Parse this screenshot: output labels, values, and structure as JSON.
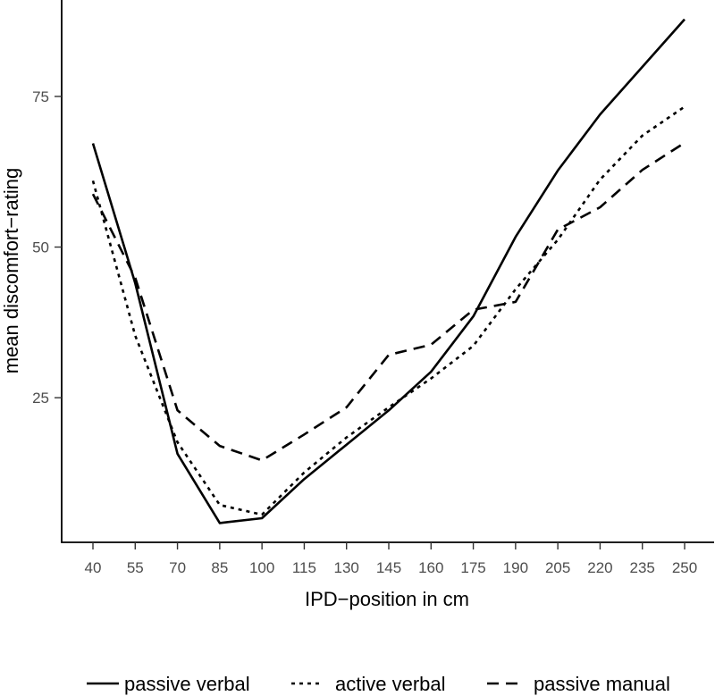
{
  "chart_data": {
    "type": "line",
    "title": "",
    "xlabel": "IPD−position in cm",
    "ylabel": "mean discomfort−rating",
    "x": [
      40,
      55,
      70,
      85,
      100,
      115,
      130,
      145,
      160,
      175,
      190,
      205,
      220,
      235,
      250
    ],
    "x_tick_labels": [
      "40",
      "55",
      "70",
      "85",
      "100",
      "115",
      "130",
      "145",
      "160",
      "175",
      "190",
      "205",
      "220",
      "235",
      "250"
    ],
    "y_ticks": [
      25,
      50,
      75
    ],
    "y_tick_labels": [
      "25",
      "50",
      "75"
    ],
    "ylim": [
      1,
      91
    ],
    "grid": false,
    "legend_position": "bottom",
    "series": [
      {
        "name": "passive verbal",
        "line_style": "solid",
        "color": "#000000",
        "values": [
          67.2,
          44.0,
          15.7,
          4.2,
          5.0,
          11.5,
          17.2,
          22.9,
          29.3,
          38.5,
          51.7,
          62.7,
          72.0,
          79.9,
          87.8
        ]
      },
      {
        "name": "active verbal",
        "line_style": "dotted",
        "color": "#000000",
        "values": [
          61.0,
          35.3,
          17.6,
          7.2,
          5.6,
          12.6,
          18.4,
          23.4,
          28.2,
          33.6,
          43.0,
          51.2,
          61.2,
          68.5,
          73.3
        ]
      },
      {
        "name": "passive manual",
        "line_style": "dashed",
        "color": "#000000",
        "values": [
          58.8,
          44.9,
          22.9,
          17.0,
          14.6,
          18.9,
          23.4,
          32.1,
          33.8,
          39.6,
          40.9,
          52.9,
          56.6,
          62.8,
          67.3
        ]
      }
    ]
  }
}
